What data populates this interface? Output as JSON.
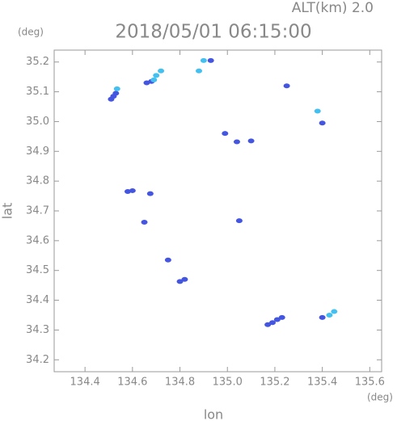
{
  "chart_data": {
    "type": "scatter",
    "title": "2018/05/01 06:15:00",
    "subtitle": "ALT(km) 2.0",
    "xlabel": "lon",
    "ylabel": "lat",
    "xunit": "(deg)",
    "yunit": "(deg)",
    "xlim": [
      134.27,
      135.65
    ],
    "ylim": [
      34.16,
      35.24
    ],
    "xticks": [
      134.4,
      134.6,
      134.8,
      {
        "value": 135,
        "label": "135.0"
      },
      135.2,
      135.4,
      135.6
    ],
    "yticks": [
      34.2,
      34.3,
      34.4,
      34.5,
      34.6,
      34.7,
      34.8,
      34.9,
      {
        "value": 35,
        "label": "35.0"
      },
      35.1,
      35.2
    ],
    "series": [
      {
        "color": "#4455e0",
        "x": [
          134.51,
          134.52,
          134.53,
          134.66,
          134.68,
          134.58,
          134.6,
          134.675,
          134.65,
          134.75,
          134.8,
          134.82,
          135.17,
          135.19,
          135.21,
          135.23,
          135.4,
          134.99,
          135.04,
          135.1,
          135.25,
          135.05,
          135.4,
          134.93
        ],
        "values": [
          35.075,
          35.085,
          35.095,
          35.13,
          35.135,
          34.765,
          34.768,
          34.758,
          34.662,
          34.535,
          34.463,
          34.47,
          34.318,
          34.325,
          34.335,
          34.342,
          34.342,
          34.96,
          34.932,
          34.935,
          35.12,
          34.667,
          34.995,
          35.205
        ]
      },
      {
        "color": "#44c0f0",
        "x": [
          134.535,
          134.72,
          134.7,
          134.69,
          134.9,
          135.43,
          135.45,
          135.38,
          134.88
        ],
        "values": [
          35.11,
          35.17,
          35.155,
          35.14,
          35.205,
          34.35,
          34.362,
          35.035,
          35.17
        ]
      }
    ]
  }
}
